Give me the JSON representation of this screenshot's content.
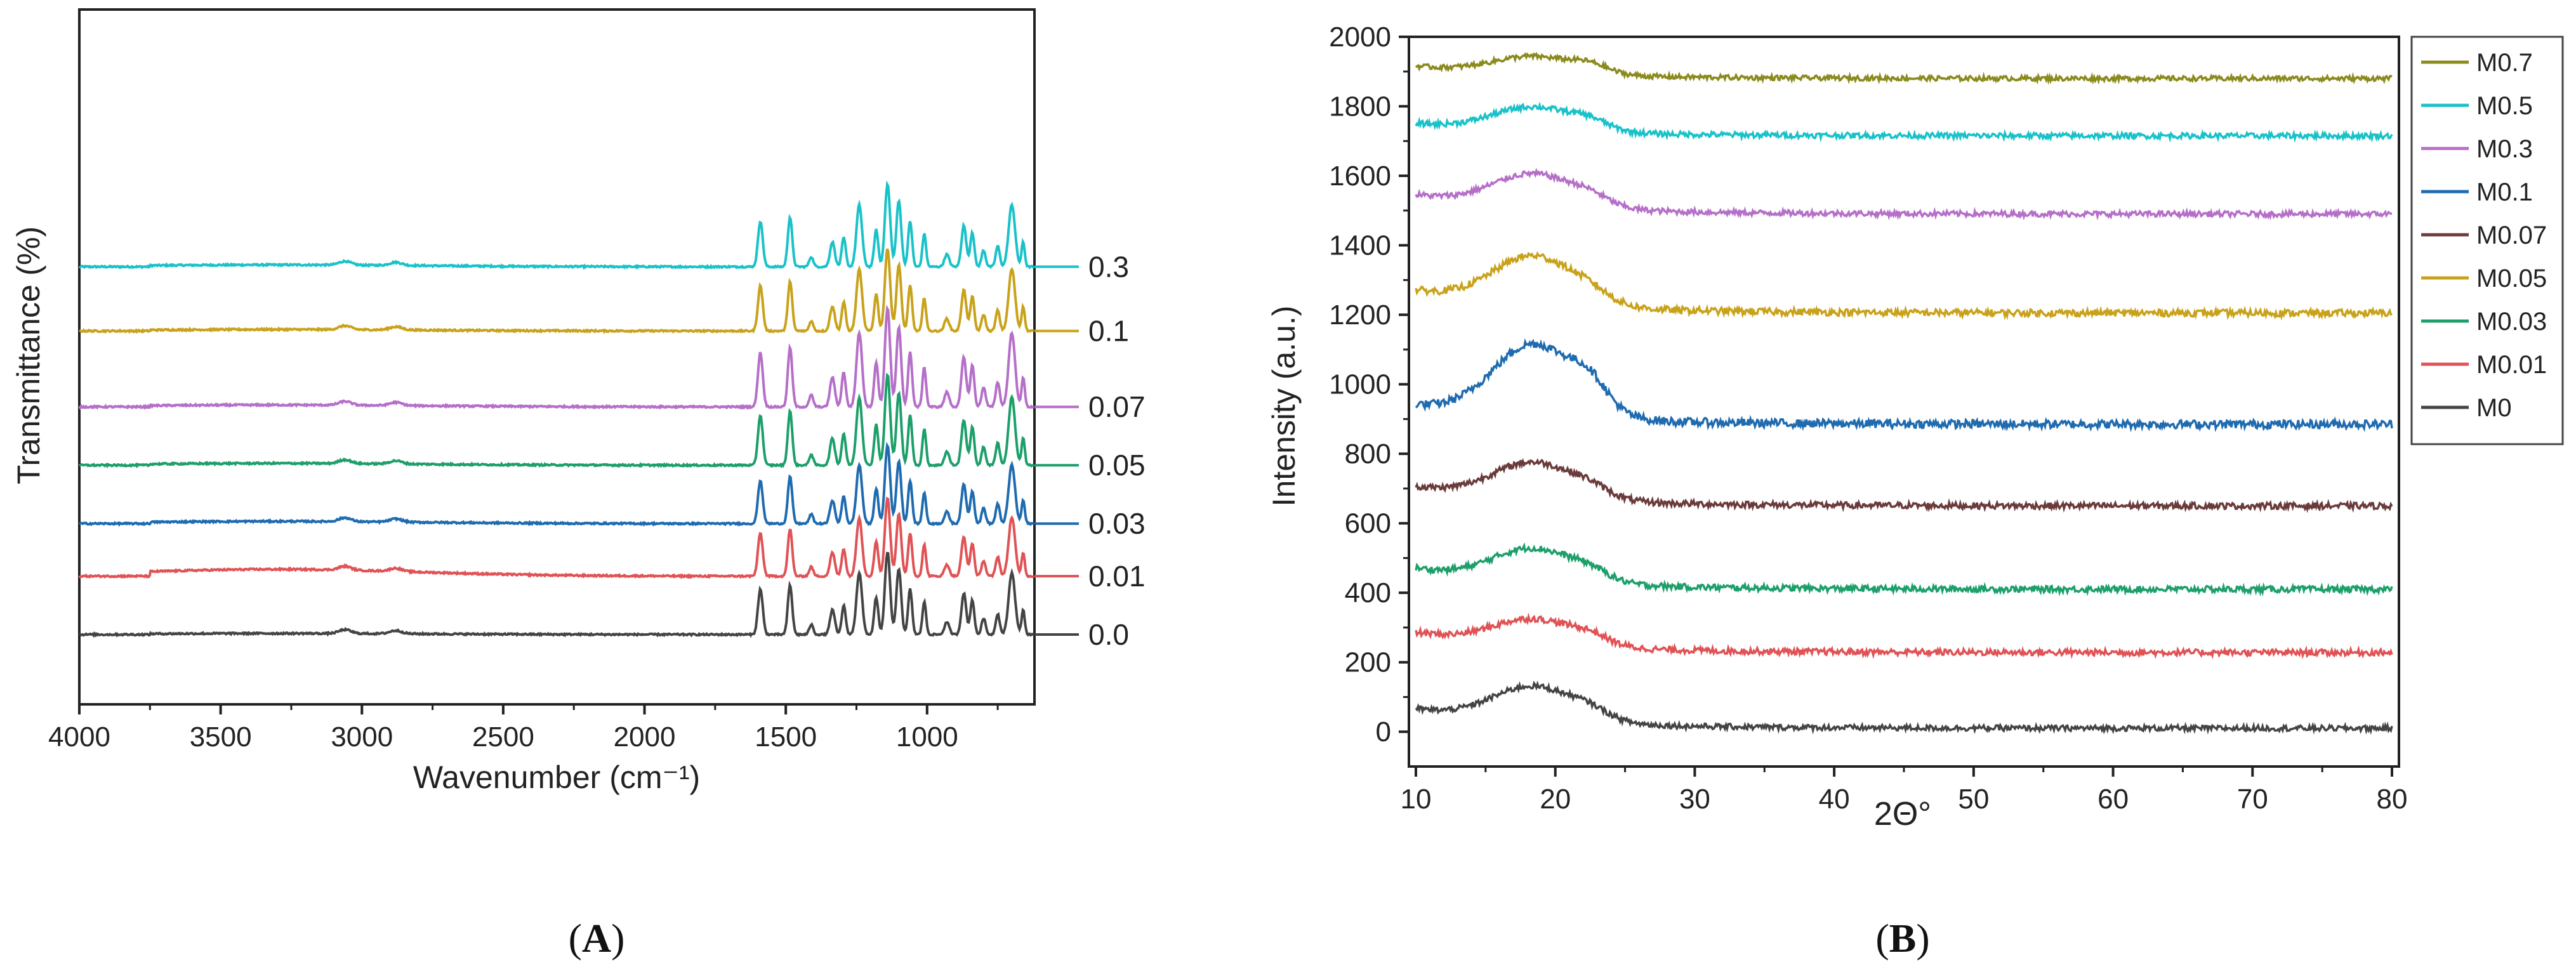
{
  "chart_data": [
    {
      "type": "line",
      "panel_label": "A",
      "title": "",
      "xlabel": "Wavenumber (cm⁻¹)",
      "ylabel": "Transmittance (%)",
      "xlim": [
        4000,
        620
      ],
      "x_ticks": [
        "4000",
        "3500",
        "3000",
        "2500",
        "2000",
        "1500",
        "1000"
      ],
      "x_tick_values": [
        4000,
        3500,
        3000,
        2500,
        2000,
        1500,
        1000
      ],
      "y_ticks_shown": false,
      "grid": false,
      "legend": "line labels at right end of each trace",
      "series": [
        {
          "name": "0.3",
          "color": "#19c2c9",
          "baseline": 6.3,
          "peak_scale": 1.0,
          "broad_hump": 0.05
        },
        {
          "name": "0.1",
          "color": "#c9a21b",
          "baseline": 5.2,
          "peak_scale": 1.0,
          "broad_hump": 0.04
        },
        {
          "name": "0.07",
          "color": "#b56fc9",
          "baseline": 3.9,
          "peak_scale": 1.2,
          "broad_hump": 0.05
        },
        {
          "name": "0.05",
          "color": "#1d9f6a",
          "baseline": 2.9,
          "peak_scale": 1.1,
          "broad_hump": 0.05
        },
        {
          "name": "0.03",
          "color": "#1f6bb0",
          "baseline": 1.9,
          "peak_scale": 0.95,
          "broad_hump": 0.06
        },
        {
          "name": "0.01",
          "color": "#e05255",
          "baseline": 1.0,
          "peak_scale": 0.95,
          "broad_hump": 0.18
        },
        {
          "name": "0.0",
          "color": "#444444",
          "baseline": 0.0,
          "peak_scale": 1.0,
          "broad_hump": 0.03
        }
      ]
    },
    {
      "type": "line",
      "panel_label": "B",
      "title": "",
      "xlabel": "2Θ°",
      "ylabel": "Intensity (a.u.)",
      "xlim": [
        9.5,
        80.5
      ],
      "ylim": [
        -100,
        2000
      ],
      "x_ticks": [
        "10",
        "20",
        "30",
        "40",
        "50",
        "60",
        "70",
        "80"
      ],
      "x_tick_values": [
        10,
        20,
        30,
        40,
        50,
        60,
        70,
        80
      ],
      "y_ticks": [
        "0",
        "200",
        "400",
        "600",
        "800",
        "1000",
        "1200",
        "1400",
        "1600",
        "1800",
        "2000"
      ],
      "y_tick_values": [
        0,
        200,
        400,
        600,
        800,
        1000,
        1200,
        1400,
        1600,
        1800,
        2000
      ],
      "grid": false,
      "legend": "top-right, outside plot",
      "series": [
        {
          "name": "M0.7",
          "color": "#8a8a1d",
          "start": 1915,
          "peak": 1965,
          "end": 1880,
          "noise": 7
        },
        {
          "name": "M0.5",
          "color": "#19c2c9",
          "start": 1750,
          "peak": 1820,
          "end": 1715,
          "noise": 8
        },
        {
          "name": "M0.3",
          "color": "#b56fc9",
          "start": 1545,
          "peak": 1640,
          "end": 1490,
          "noise": 8
        },
        {
          "name": "M0.1",
          "color": "#1f6bb0",
          "start": 940,
          "peak": 1150,
          "end": 885,
          "noise": 12
        },
        {
          "name": "M0.07",
          "color": "#6b3b3b",
          "start": 705,
          "peak": 810,
          "end": 650,
          "noise": 9
        },
        {
          "name": "M0.05",
          "color": "#c9a21b",
          "start": 1270,
          "peak": 1410,
          "end": 1205,
          "noise": 10
        },
        {
          "name": "M0.03",
          "color": "#1d9f6a",
          "start": 470,
          "peak": 565,
          "end": 410,
          "noise": 9
        },
        {
          "name": "M0.01",
          "color": "#e05255",
          "start": 285,
          "peak": 360,
          "end": 228,
          "noise": 9
        },
        {
          "name": "M0",
          "color": "#444444",
          "start": 65,
          "peak": 165,
          "end": 10,
          "noise": 8
        }
      ]
    }
  ]
}
